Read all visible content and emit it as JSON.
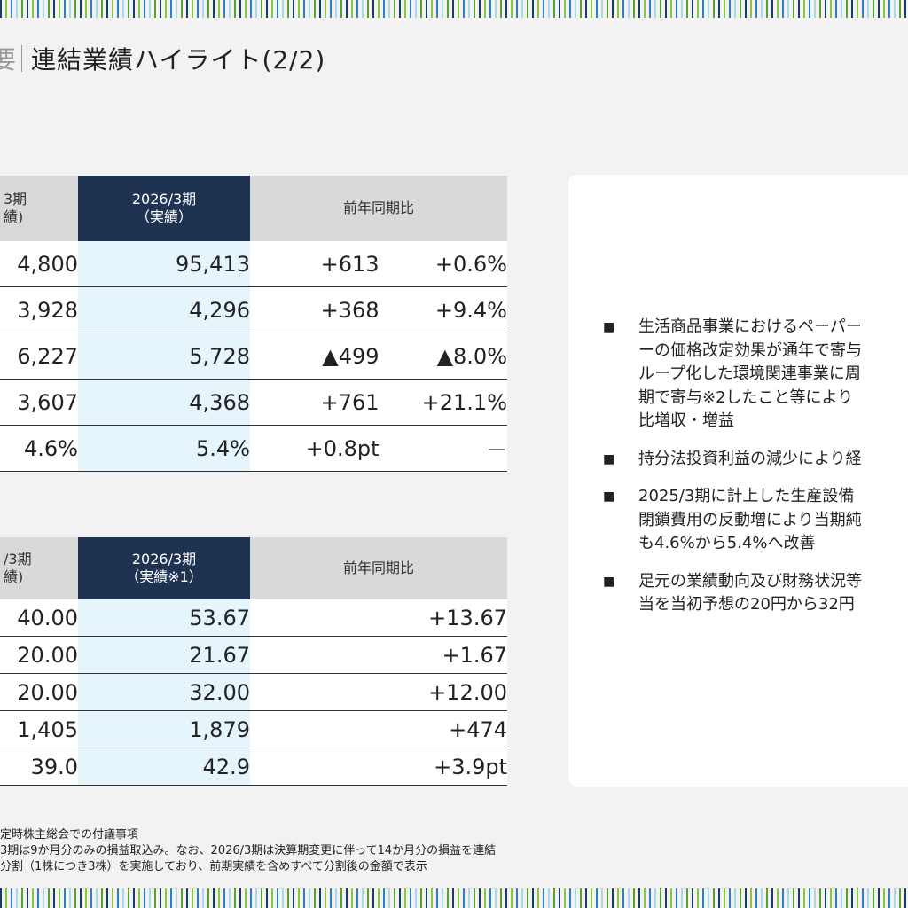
{
  "header": {
    "prev_fragment": "要",
    "title": "連結業績ハイライト(2/2)"
  },
  "table1": {
    "headers": {
      "prev": "3期\n績)",
      "current": "2026/3期\n（実績）",
      "yoy": "前年同期比"
    },
    "rows": [
      {
        "prev": "4,800",
        "current": "95,413",
        "diff": "+613",
        "pct": "+0.6%"
      },
      {
        "prev": "3,928",
        "current": "4,296",
        "diff": "+368",
        "pct": "+9.4%"
      },
      {
        "prev": "6,227",
        "current": "5,728",
        "diff": "▲499",
        "pct": "▲8.0%"
      },
      {
        "prev": "3,607",
        "current": "4,368",
        "diff": "+761",
        "pct": "+21.1%"
      },
      {
        "prev": "4.6%",
        "current": "5.4%",
        "diff": "+0.8pt",
        "pct": "－"
      }
    ]
  },
  "table2": {
    "headers": {
      "prev": "/3期\n績)",
      "current": "2026/3期\n（実績※1）",
      "yoy": "前年同期比"
    },
    "rows": [
      {
        "prev": "40.00",
        "current": "53.67",
        "diff": "+13.67"
      },
      {
        "prev": "20.00",
        "current": "21.67",
        "diff": "+1.67"
      },
      {
        "prev": "20.00",
        "current": "32.00",
        "diff": "+12.00"
      },
      {
        "prev": "1,405",
        "current": "1,879",
        "diff": "+474"
      },
      {
        "prev": "39.0",
        "current": "42.9",
        "diff": "+3.9pt"
      }
    ]
  },
  "panel": {
    "bullets": [
      "生活商品事業におけるペーパー\nーの価格改定効果が通年で寄与\nループ化した環境関連事業に周\n期で寄与※2したこと等により\n比増収・増益",
      "持分法投資利益の減少により経",
      "2025/3期に計上した生産設備\n閉鎖費用の反動増により当期純\nも4.6%から5.4%へ改善",
      "足元の業績動向及び財務状況等\n当を当初予想の20円から32円"
    ],
    "bullet_marker": "■"
  },
  "notes": [
    "定時株主総会での付議事項",
    "3期は9か月分のみの損益取込み。なお、2026/3期は決算期変更に伴って14か月分の損益を連結",
    "分割（1株につき3株）を実施しており、前期実績を含めすべて分割後の金額で表示"
  ]
}
